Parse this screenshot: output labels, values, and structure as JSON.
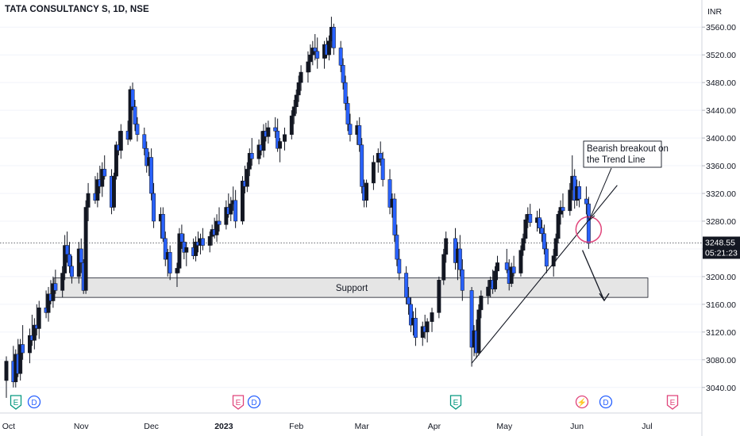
{
  "symbol_title": "TATA CONSULTANCY S, 1D, NSE",
  "currency": "INR",
  "colors": {
    "up": "#131722",
    "down": "#2962ff",
    "wick": "#131722",
    "support_fill": "#e0e0e0",
    "circle": "#e0457b",
    "price_label_bg": "#131722"
  },
  "price_label": {
    "price": "3248.55",
    "countdown": "05:21:23"
  },
  "annotations": {
    "callout": [
      "Bearish breakout on",
      "the Trend Line"
    ],
    "support_label": "Support"
  },
  "event_markers": [
    {
      "letter": "E",
      "color": "#089981",
      "near": "Oct"
    },
    {
      "letter": "D",
      "color": "#2962ff",
      "near": "Oct"
    },
    {
      "letter": "E",
      "color": "#e0457b",
      "near": "Jan"
    },
    {
      "letter": "D",
      "color": "#2962ff",
      "near": "Jan"
    },
    {
      "letter": "E",
      "color": "#089981",
      "near": "Apr"
    },
    {
      "letter": "⚡",
      "color": "#e0457b",
      "near": "Jun"
    },
    {
      "letter": "D",
      "color": "#2962ff",
      "near": "Jun"
    },
    {
      "letter": "E",
      "color": "#e0457b",
      "near": "Jul"
    }
  ],
  "chart_data": {
    "type": "candlestick",
    "ylim": [
      3010,
      3590
    ],
    "y_ticks": [
      "3560.00",
      "3520.00",
      "3480.00",
      "3440.00",
      "3400.00",
      "3360.00",
      "3320.00",
      "3280.00",
      "3240.00",
      "3200.00",
      "3160.00",
      "3120.00",
      "3080.00",
      "3040.00"
    ],
    "x_ticks": [
      {
        "label": "Oct",
        "bold": false
      },
      {
        "label": "Nov",
        "bold": false
      },
      {
        "label": "Dec",
        "bold": false
      },
      {
        "label": "2023",
        "bold": true
      },
      {
        "label": "Feb",
        "bold": false
      },
      {
        "label": "Mar",
        "bold": false
      },
      {
        "label": "Apr",
        "bold": false
      },
      {
        "label": "May",
        "bold": false
      },
      {
        "label": "Jun",
        "bold": false
      },
      {
        "label": "Jul",
        "bold": false
      }
    ],
    "support_zone": [
      3170,
      3198
    ],
    "trendline": {
      "from": [
        "2023-04-17",
        3075
      ],
      "to": [
        "2023-06-06",
        3318
      ]
    },
    "projection": {
      "from": [
        "2023-06-02",
        3245
      ],
      "to": [
        "2023-06-06",
        3170
      ]
    },
    "ohlc": [
      [
        "2022-09-30",
        3050,
        3085,
        3025,
        3078
      ],
      [
        "2022-10-03",
        3078,
        3100,
        3040,
        3048
      ],
      [
        "2022-10-04",
        3048,
        3095,
        3040,
        3088
      ],
      [
        "2022-10-05",
        3088,
        3110,
        3055,
        3060
      ],
      [
        "2022-10-06",
        3060,
        3110,
        3050,
        3102
      ],
      [
        "2022-10-07",
        3102,
        3130,
        3080,
        3090
      ],
      [
        "2022-10-10",
        3090,
        3125,
        3075,
        3115
      ],
      [
        "2022-10-11",
        3115,
        3145,
        3100,
        3108
      ],
      [
        "2022-10-12",
        3108,
        3140,
        3095,
        3130
      ],
      [
        "2022-10-13",
        3130,
        3160,
        3115,
        3125
      ],
      [
        "2022-10-14",
        3125,
        3165,
        3110,
        3155
      ],
      [
        "2022-10-17",
        3155,
        3180,
        3140,
        3148
      ],
      [
        "2022-10-18",
        3148,
        3185,
        3135,
        3175
      ],
      [
        "2022-10-19",
        3175,
        3195,
        3160,
        3165
      ],
      [
        "2022-10-20",
        3165,
        3200,
        3155,
        3190
      ],
      [
        "2022-10-21",
        3190,
        3210,
        3175,
        3180
      ],
      [
        "2022-10-24",
        3180,
        3215,
        3170,
        3205
      ],
      [
        "2022-10-25",
        3205,
        3260,
        3195,
        3245
      ],
      [
        "2022-10-26",
        3245,
        3265,
        3220,
        3232
      ],
      [
        "2022-10-27",
        3232,
        3250,
        3205,
        3215
      ],
      [
        "2022-10-28",
        3215,
        3230,
        3190,
        3200
      ],
      [
        "2022-10-31",
        3200,
        3250,
        3190,
        3240
      ],
      [
        "2022-11-01",
        3240,
        3255,
        3205,
        3220
      ],
      [
        "2022-11-02",
        3220,
        3225,
        3175,
        3180
      ],
      [
        "2022-11-03",
        3180,
        3310,
        3175,
        3300
      ],
      [
        "2022-11-04",
        3300,
        3335,
        3280,
        3320
      ],
      [
        "2022-11-07",
        3320,
        3345,
        3305,
        3310
      ],
      [
        "2022-11-08",
        3310,
        3350,
        3300,
        3340
      ],
      [
        "2022-11-09",
        3340,
        3360,
        3320,
        3330
      ],
      [
        "2022-11-10",
        3330,
        3365,
        3315,
        3355
      ],
      [
        "2022-11-11",
        3355,
        3375,
        3340,
        3345
      ],
      [
        "2022-11-14",
        3345,
        3355,
        3290,
        3300
      ],
      [
        "2022-11-15",
        3300,
        3350,
        3295,
        3345
      ],
      [
        "2022-11-16",
        3345,
        3395,
        3340,
        3390
      ],
      [
        "2022-11-17",
        3390,
        3410,
        3375,
        3382
      ],
      [
        "2022-11-18",
        3382,
        3420,
        3370,
        3410
      ],
      [
        "2022-11-21",
        3410,
        3425,
        3390,
        3398
      ],
      [
        "2022-11-22",
        3398,
        3475,
        3395,
        3470
      ],
      [
        "2022-11-23",
        3470,
        3480,
        3440,
        3445
      ],
      [
        "2022-11-24",
        3445,
        3455,
        3410,
        3420
      ],
      [
        "2022-11-25",
        3420,
        3430,
        3395,
        3405
      ],
      [
        "2022-11-28",
        3405,
        3415,
        3375,
        3385
      ],
      [
        "2022-11-29",
        3385,
        3395,
        3350,
        3360
      ],
      [
        "2022-11-30",
        3360,
        3380,
        3345,
        3372
      ],
      [
        "2022-12-01",
        3372,
        3385,
        3310,
        3320
      ],
      [
        "2022-12-02",
        3320,
        3335,
        3270,
        3280
      ],
      [
        "2022-12-05",
        3280,
        3300,
        3255,
        3290
      ],
      [
        "2022-12-06",
        3290,
        3300,
        3250,
        3255
      ],
      [
        "2022-12-07",
        3255,
        3265,
        3215,
        3225
      ],
      [
        "2022-12-08",
        3225,
        3240,
        3200,
        3235
      ],
      [
        "2022-12-09",
        3235,
        3245,
        3195,
        3205
      ],
      [
        "2022-12-12",
        3205,
        3220,
        3185,
        3212
      ],
      [
        "2022-12-13",
        3212,
        3270,
        3205,
        3262
      ],
      [
        "2022-12-14",
        3262,
        3275,
        3240,
        3250
      ],
      [
        "2022-12-15",
        3250,
        3262,
        3225,
        3235
      ],
      [
        "2022-12-16",
        3235,
        3250,
        3215,
        3242
      ],
      [
        "2022-12-19",
        3242,
        3255,
        3225,
        3230
      ],
      [
        "2022-12-20",
        3230,
        3258,
        3222,
        3250
      ],
      [
        "2022-12-21",
        3250,
        3265,
        3235,
        3245
      ],
      [
        "2022-12-22",
        3245,
        3262,
        3232,
        3255
      ],
      [
        "2022-12-23",
        3255,
        3270,
        3238,
        3245
      ],
      [
        "2022-12-26",
        3245,
        3265,
        3235,
        3258
      ],
      [
        "2022-12-27",
        3258,
        3275,
        3245,
        3268
      ],
      [
        "2022-12-28",
        3268,
        3285,
        3255,
        3260
      ],
      [
        "2022-12-29",
        3260,
        3290,
        3250,
        3280
      ],
      [
        "2022-12-30",
        3280,
        3300,
        3265,
        3275
      ],
      [
        "2023-01-02",
        3275,
        3310,
        3268,
        3300
      ],
      [
        "2023-01-03",
        3300,
        3320,
        3285,
        3290
      ],
      [
        "2023-01-04",
        3290,
        3315,
        3280,
        3305
      ],
      [
        "2023-01-05",
        3305,
        3330,
        3295,
        3310
      ],
      [
        "2023-01-06",
        3310,
        3325,
        3270,
        3280
      ],
      [
        "2023-01-09",
        3280,
        3345,
        3275,
        3338
      ],
      [
        "2023-01-10",
        3338,
        3360,
        3320,
        3330
      ],
      [
        "2023-01-11",
        3330,
        3365,
        3322,
        3355
      ],
      [
        "2023-01-12",
        3355,
        3385,
        3345,
        3378
      ],
      [
        "2023-01-13",
        3378,
        3400,
        3360,
        3370
      ],
      [
        "2023-01-16",
        3370,
        3398,
        3362,
        3390
      ],
      [
        "2023-01-17",
        3390,
        3410,
        3375,
        3382
      ],
      [
        "2023-01-18",
        3382,
        3420,
        3372,
        3410
      ],
      [
        "2023-01-19",
        3410,
        3422,
        3395,
        3402
      ],
      [
        "2023-01-20",
        3402,
        3425,
        3392,
        3415
      ],
      [
        "2023-01-23",
        3415,
        3430,
        3400,
        3410
      ],
      [
        "2023-01-24",
        3410,
        3428,
        3380,
        3385
      ],
      [
        "2023-01-25",
        3385,
        3400,
        3365,
        3395
      ],
      [
        "2023-01-27",
        3395,
        3415,
        3382,
        3405
      ],
      [
        "2023-01-30",
        3405,
        3440,
        3398,
        3432
      ],
      [
        "2023-01-31",
        3432,
        3455,
        3420,
        3445
      ],
      [
        "2023-02-01",
        3445,
        3470,
        3435,
        3462
      ],
      [
        "2023-02-02",
        3462,
        3490,
        3452,
        3480
      ],
      [
        "2023-02-03",
        3480,
        3505,
        3468,
        3495
      ],
      [
        "2023-02-06",
        3495,
        3525,
        3480,
        3510
      ],
      [
        "2023-02-07",
        3510,
        3535,
        3495,
        3520
      ],
      [
        "2023-02-08",
        3520,
        3540,
        3505,
        3530
      ],
      [
        "2023-02-09",
        3530,
        3550,
        3512,
        3525
      ],
      [
        "2023-02-10",
        3525,
        3545,
        3500,
        3515
      ],
      [
        "2023-02-13",
        3515,
        3540,
        3500,
        3535
      ],
      [
        "2023-02-14",
        3535,
        3545,
        3515,
        3520
      ],
      [
        "2023-02-15",
        3520,
        3548,
        3512,
        3540
      ],
      [
        "2023-02-16",
        3540,
        3575,
        3530,
        3560
      ],
      [
        "2023-02-17",
        3560,
        3565,
        3520,
        3530
      ],
      [
        "2023-02-20",
        3530,
        3540,
        3495,
        3505
      ],
      [
        "2023-02-21",
        3505,
        3515,
        3470,
        3480
      ],
      [
        "2023-02-22",
        3480,
        3490,
        3440,
        3450
      ],
      [
        "2023-02-23",
        3450,
        3460,
        3410,
        3420
      ],
      [
        "2023-02-24",
        3420,
        3435,
        3395,
        3405
      ],
      [
        "2023-02-27",
        3405,
        3425,
        3390,
        3418
      ],
      [
        "2023-02-28",
        3418,
        3430,
        3380,
        3390
      ],
      [
        "2023-03-01",
        3390,
        3400,
        3320,
        3330
      ],
      [
        "2023-03-02",
        3330,
        3340,
        3300,
        3310
      ],
      [
        "2023-03-03",
        3310,
        3340,
        3300,
        3335
      ],
      [
        "2023-03-06",
        3335,
        3375,
        3325,
        3365
      ],
      [
        "2023-03-08",
        3365,
        3385,
        3350,
        3378
      ],
      [
        "2023-03-09",
        3378,
        3395,
        3360,
        3370
      ],
      [
        "2023-03-10",
        3370,
        3380,
        3330,
        3340
      ],
      [
        "2023-03-13",
        3340,
        3355,
        3290,
        3300
      ],
      [
        "2023-03-14",
        3300,
        3320,
        3285,
        3312
      ],
      [
        "2023-03-15",
        3312,
        3320,
        3250,
        3260
      ],
      [
        "2023-03-16",
        3260,
        3275,
        3215,
        3225
      ],
      [
        "2023-03-17",
        3225,
        3240,
        3195,
        3205
      ],
      [
        "2023-03-20",
        3205,
        3215,
        3160,
        3170
      ],
      [
        "2023-03-21",
        3170,
        3185,
        3145,
        3160
      ],
      [
        "2023-03-22",
        3160,
        3170,
        3120,
        3130
      ],
      [
        "2023-03-23",
        3130,
        3150,
        3115,
        3140
      ],
      [
        "2023-03-24",
        3140,
        3155,
        3100,
        3112
      ],
      [
        "2023-03-27",
        3112,
        3135,
        3100,
        3128
      ],
      [
        "2023-03-28",
        3128,
        3145,
        3110,
        3120
      ],
      [
        "2023-03-29",
        3120,
        3140,
        3105,
        3135
      ],
      [
        "2023-03-31",
        3135,
        3155,
        3120,
        3148
      ],
      [
        "2023-04-03",
        3148,
        3200,
        3140,
        3195
      ],
      [
        "2023-04-05",
        3195,
        3240,
        3188,
        3232
      ],
      [
        "2023-04-06",
        3232,
        3265,
        3220,
        3255
      ],
      [
        "2023-04-10",
        3255,
        3270,
        3210,
        3220
      ],
      [
        "2023-04-11",
        3220,
        3250,
        3195,
        3240
      ],
      [
        "2023-04-12",
        3240,
        3260,
        3200,
        3210
      ],
      [
        "2023-04-13",
        3210,
        3225,
        3165,
        3180
      ],
      [
        "2023-04-17",
        3180,
        3185,
        3070,
        3098
      ],
      [
        "2023-04-18",
        3098,
        3130,
        3085,
        3122
      ],
      [
        "2023-04-19",
        3122,
        3138,
        3082,
        3090
      ],
      [
        "2023-04-20",
        3090,
        3160,
        3086,
        3152
      ],
      [
        "2023-04-21",
        3152,
        3180,
        3140,
        3172
      ],
      [
        "2023-04-24",
        3172,
        3195,
        3160,
        3185
      ],
      [
        "2023-04-25",
        3185,
        3200,
        3170,
        3195
      ],
      [
        "2023-04-26",
        3195,
        3210,
        3175,
        3182
      ],
      [
        "2023-04-27",
        3182,
        3215,
        3178,
        3208
      ],
      [
        "2023-04-28",
        3208,
        3230,
        3195,
        3220
      ],
      [
        "2023-05-02",
        3220,
        3240,
        3205,
        3210
      ],
      [
        "2023-05-03",
        3210,
        3225,
        3180,
        3190
      ],
      [
        "2023-05-04",
        3190,
        3220,
        3185,
        3214
      ],
      [
        "2023-05-05",
        3214,
        3230,
        3200,
        3205
      ],
      [
        "2023-05-08",
        3205,
        3245,
        3200,
        3238
      ],
      [
        "2023-05-09",
        3238,
        3262,
        3230,
        3255
      ],
      [
        "2023-05-10",
        3255,
        3290,
        3248,
        3282
      ],
      [
        "2023-05-11",
        3282,
        3300,
        3270,
        3290
      ],
      [
        "2023-05-12",
        3290,
        3305,
        3272,
        3278
      ],
      [
        "2023-05-15",
        3278,
        3295,
        3265,
        3285
      ],
      [
        "2023-05-16",
        3285,
        3298,
        3262,
        3270
      ],
      [
        "2023-05-17",
        3270,
        3282,
        3250,
        3262
      ],
      [
        "2023-05-18",
        3262,
        3275,
        3232,
        3240
      ],
      [
        "2023-05-19",
        3240,
        3250,
        3205,
        3215
      ],
      [
        "2023-05-22",
        3215,
        3240,
        3200,
        3230
      ],
      [
        "2023-05-23",
        3230,
        3262,
        3222,
        3255
      ],
      [
        "2023-05-24",
        3255,
        3295,
        3248,
        3290
      ],
      [
        "2023-05-25",
        3290,
        3310,
        3275,
        3300
      ],
      [
        "2023-05-26",
        3300,
        3320,
        3285,
        3295
      ],
      [
        "2023-05-29",
        3295,
        3335,
        3288,
        3325
      ],
      [
        "2023-05-30",
        3325,
        3375,
        3310,
        3345
      ],
      [
        "2023-05-31",
        3345,
        3355,
        3298,
        3310
      ],
      [
        "2023-06-01",
        3310,
        3340,
        3302,
        3330
      ],
      [
        "2023-06-02",
        3330,
        3338,
        3300,
        3312
      ],
      [
        "2023-06-05",
        3312,
        3330,
        3290,
        3305
      ],
      [
        "2023-06-06",
        3305,
        3315,
        3240,
        3248
      ]
    ]
  }
}
